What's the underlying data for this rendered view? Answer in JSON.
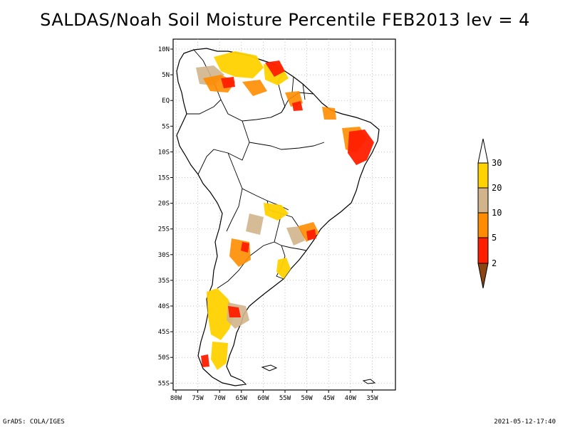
{
  "title": "SALDAS/Noah Soil Moisture Percentile FEB2013 lev = 4",
  "footer": {
    "left": "GrADS: COLA/IGES",
    "right": "2021-05-12-17:40"
  },
  "map": {
    "lat_ticks": [
      "10N",
      "5N",
      "EQ",
      "5S",
      "10S",
      "15S",
      "20S",
      "25S",
      "30S",
      "35S",
      "40S",
      "45S",
      "50S",
      "55S"
    ],
    "lon_ticks": [
      "80W",
      "75W",
      "70W",
      "65W",
      "60W",
      "55W",
      "50W",
      "45W",
      "40W",
      "35W"
    ],
    "grid": true,
    "region": "South America",
    "colors": {
      "land_outline": "#000000",
      "ocean": "#ffffff",
      "grid": "#aaaaaa"
    }
  },
  "legend": {
    "labels": [
      "30",
      "20",
      "10",
      "5",
      "2"
    ],
    "colors": {
      "above_30": "#ffffff",
      "20_30": "#ffd200",
      "10_20": "#d2b48c",
      "5_10": "#ff8c00",
      "2_5": "#ff1e00",
      "below_2": "#8b4513"
    }
  }
}
